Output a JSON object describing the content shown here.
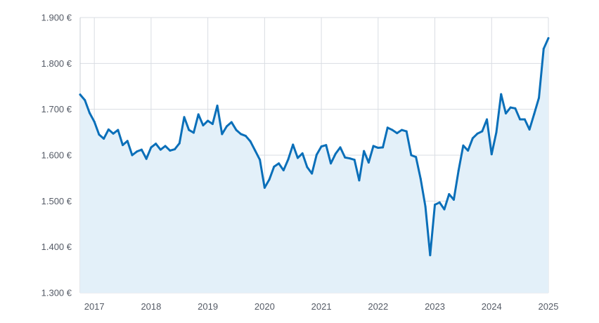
{
  "chart_data": {
    "type": "area",
    "title": "",
    "xlabel": "",
    "ylabel": "",
    "x_ticks": [
      "2017",
      "2018",
      "2019",
      "2020",
      "2021",
      "2022",
      "2023",
      "2024",
      "2025"
    ],
    "y_ticks": [
      "1.300 €",
      "1.400 €",
      "1.500 €",
      "1.600 €",
      "1.700 €",
      "1.800 €",
      "1.900 €"
    ],
    "y_tick_values": [
      1300,
      1400,
      1500,
      1600,
      1700,
      1800,
      1900
    ],
    "ylim": [
      1300,
      1900
    ],
    "xlim": [
      "2016-10",
      "2025-01"
    ],
    "grid": true,
    "legend": "none",
    "colors": {
      "line": "#0a6fb9",
      "fill": "#e3f0f9",
      "grid": "#d9dde3",
      "axis": "#c8cdd4"
    },
    "series": [
      {
        "x": [
          "2016-10",
          "2016-11",
          "2016-12",
          "2017-01",
          "2017-02",
          "2017-03",
          "2017-04",
          "2017-05",
          "2017-06",
          "2017-07",
          "2017-08",
          "2017-09",
          "2017-10",
          "2017-11",
          "2017-12",
          "2018-01",
          "2018-02",
          "2018-03",
          "2018-04",
          "2018-05",
          "2018-06",
          "2018-07",
          "2018-08",
          "2018-09",
          "2018-10",
          "2018-11",
          "2018-12",
          "2019-01",
          "2019-02",
          "2019-03",
          "2019-04",
          "2019-05",
          "2019-06",
          "2019-07",
          "2019-08",
          "2019-09",
          "2019-10",
          "2019-11",
          "2019-12",
          "2020-01",
          "2020-02",
          "2020-03",
          "2020-04",
          "2020-05",
          "2020-06",
          "2020-07",
          "2020-08",
          "2020-09",
          "2020-10",
          "2020-11",
          "2020-12",
          "2021-01",
          "2021-02",
          "2021-03",
          "2021-04",
          "2021-05",
          "2021-06",
          "2021-07",
          "2021-08",
          "2021-09",
          "2021-10",
          "2021-11",
          "2021-12",
          "2022-01",
          "2022-02",
          "2022-03",
          "2022-04",
          "2022-05",
          "2022-06",
          "2022-07",
          "2022-08",
          "2022-09",
          "2022-10",
          "2022-11",
          "2022-12",
          "2023-01",
          "2023-02",
          "2023-03",
          "2023-04",
          "2023-05",
          "2023-06",
          "2023-07",
          "2023-08",
          "2023-09",
          "2023-10",
          "2023-11",
          "2023-12",
          "2024-01",
          "2024-02",
          "2024-03",
          "2024-04",
          "2024-05",
          "2024-06",
          "2024-07",
          "2024-08",
          "2024-09",
          "2024-10",
          "2024-11",
          "2024-12",
          "2025-01"
        ],
        "values": [
          1732,
          1720,
          1692,
          1673,
          1645,
          1636,
          1656,
          1647,
          1655,
          1622,
          1631,
          1600,
          1608,
          1612,
          1592,
          1617,
          1625,
          1612,
          1620,
          1610,
          1613,
          1626,
          1683,
          1655,
          1649,
          1689,
          1665,
          1675,
          1668,
          1708,
          1646,
          1663,
          1672,
          1655,
          1646,
          1642,
          1630,
          1610,
          1590,
          1529,
          1547,
          1575,
          1582,
          1567,
          1591,
          1623,
          1594,
          1604,
          1574,
          1560,
          1601,
          1619,
          1622,
          1582,
          1603,
          1617,
          1595,
          1593,
          1590,
          1545,
          1609,
          1584,
          1620,
          1616,
          1617,
          1660,
          1655,
          1648,
          1655,
          1652,
          1600,
          1596,
          1548,
          1488,
          1382,
          1492,
          1497,
          1482,
          1515,
          1503,
          1566,
          1621,
          1610,
          1637,
          1647,
          1652,
          1678,
          1602,
          1650,
          1733,
          1691,
          1704,
          1702,
          1678,
          1678,
          1656,
          1690,
          1725,
          1832,
          1855
        ]
      }
    ]
  }
}
